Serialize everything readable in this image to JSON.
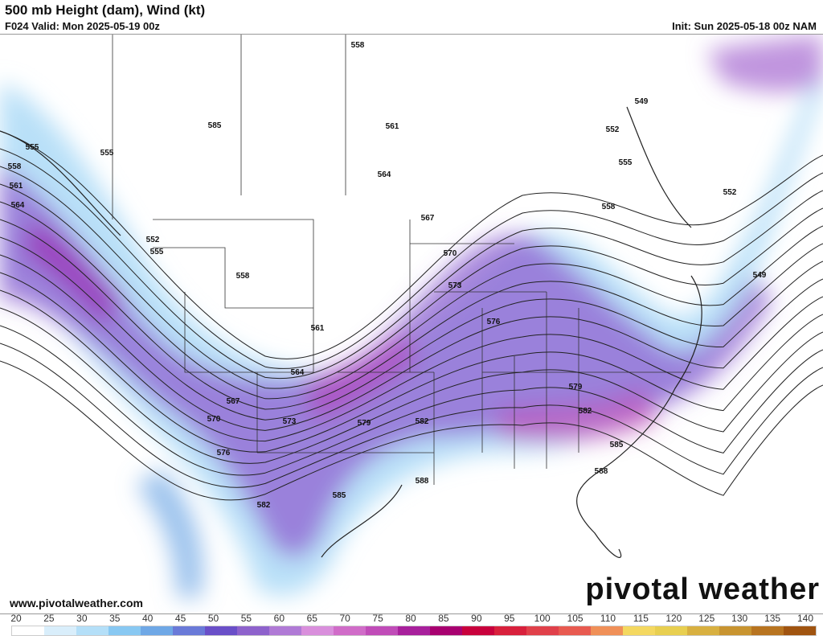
{
  "header": {
    "title": "500 mb Height (dam), Wind (kt)",
    "valid": "F024 Valid: Mon 2025-05-19 00z",
    "init": "Init: Sun 2025-05-18 00z NAM"
  },
  "map": {
    "contour_labels": [
      "558",
      "561",
      "564",
      "567",
      "570",
      "573",
      "576",
      "579",
      "582",
      "585",
      "588",
      "549",
      "552",
      "555",
      "558",
      "552",
      "549",
      "555",
      "558",
      "561",
      "564",
      "555",
      "552",
      "555",
      "558",
      "561",
      "564",
      "567",
      "570",
      "573",
      "576",
      "579",
      "582",
      "582",
      "585",
      "588",
      "585"
    ],
    "jet_color": "#9b2fb8",
    "wind_low_color": "#8fc8f0"
  },
  "footer": {
    "url": "www.pivotalweather.com",
    "logo": "pivotal weather"
  },
  "colorbar": {
    "ticks": [
      "20",
      "25",
      "30",
      "35",
      "40",
      "45",
      "50",
      "55",
      "60",
      "65",
      "70",
      "75",
      "80",
      "85",
      "90",
      "95",
      "100",
      "105",
      "110",
      "115",
      "120",
      "125",
      "130",
      "135",
      "140"
    ],
    "colors": [
      "#ffffff",
      "#d9eefb",
      "#b4dff8",
      "#88c8f2",
      "#6fa8e6",
      "#6a7ad8",
      "#6a4fc8",
      "#8e62cc",
      "#b07ad6",
      "#d98fdc",
      "#d06cc8",
      "#c04cb8",
      "#a8209c",
      "#a80070",
      "#c8003c",
      "#d8203c",
      "#e0404a",
      "#e85a50",
      "#f09058",
      "#f4d860",
      "#e8cf50",
      "#d8b040",
      "#c89430",
      "#b87420",
      "#a05410"
    ]
  }
}
